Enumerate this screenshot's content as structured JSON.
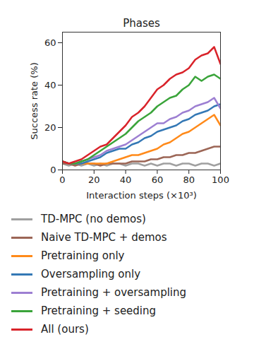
{
  "chart_data": {
    "type": "line",
    "title": "Phases",
    "x_label": "Interaction steps (×10³)",
    "y_label": "Success rate (%)",
    "x": [
      0,
      4,
      8,
      12,
      16,
      20,
      24,
      28,
      32,
      36,
      40,
      44,
      48,
      52,
      56,
      60,
      64,
      68,
      72,
      76,
      80,
      84,
      88,
      92,
      96,
      100
    ],
    "xlim": [
      0,
      100
    ],
    "xticks": [
      0,
      20,
      40,
      60,
      80,
      100
    ],
    "ylim": [
      0,
      65
    ],
    "yticks": [
      0,
      20,
      40,
      60
    ],
    "grid": false,
    "legend": "bottom",
    "series": [
      {
        "name": "TD-MPC (no demos)",
        "color": "#a0a0a0",
        "values": [
          3,
          2,
          3,
          2,
          3,
          2,
          3,
          2,
          3,
          3,
          2,
          3,
          3,
          2,
          3,
          2,
          3,
          3,
          2,
          3,
          3,
          2,
          3,
          3,
          2,
          3
        ]
      },
      {
        "name": "Naive TD-MPC + demos",
        "color": "#9c6656",
        "values": [
          3,
          3,
          2,
          3,
          3,
          3,
          2,
          3,
          3,
          3,
          3,
          4,
          4,
          4,
          5,
          5,
          6,
          6,
          7,
          7,
          8,
          8,
          9,
          10,
          11,
          11
        ]
      },
      {
        "name": "Pretraining only",
        "color": "#ff8a1a",
        "values": [
          4,
          3,
          3,
          3,
          3,
          3,
          3,
          3,
          4,
          5,
          6,
          7,
          7,
          8,
          9,
          10,
          12,
          13,
          15,
          17,
          18,
          20,
          22,
          24,
          26,
          21
        ]
      },
      {
        "name": "Oversampling only",
        "color": "#3478b5",
        "values": [
          4,
          3,
          3,
          3,
          4,
          5,
          6,
          8,
          9,
          10,
          10,
          12,
          13,
          15,
          16,
          18,
          19,
          20,
          21,
          23,
          24,
          26,
          27,
          28,
          30,
          31
        ]
      },
      {
        "name": "Pretraining + oversampling",
        "color": "#9d7fd2",
        "values": [
          4,
          3,
          3,
          4,
          5,
          6,
          7,
          9,
          10,
          11,
          12,
          14,
          16,
          18,
          20,
          22,
          22,
          24,
          25,
          27,
          28,
          30,
          31,
          32,
          34,
          29
        ]
      },
      {
        "name": "Pretraining + seeding",
        "color": "#3aa43a",
        "values": [
          4,
          3,
          3,
          4,
          5,
          7,
          9,
          11,
          13,
          15,
          17,
          20,
          23,
          25,
          27,
          30,
          32,
          34,
          35,
          38,
          40,
          44,
          42,
          44,
          45,
          43
        ]
      },
      {
        "name": "All (ours)",
        "color": "#d9232a",
        "values": [
          4,
          3,
          4,
          5,
          7,
          9,
          11,
          12,
          15,
          18,
          21,
          25,
          27,
          30,
          34,
          38,
          40,
          43,
          45,
          46,
          48,
          52,
          54,
          55,
          58,
          50
        ]
      }
    ]
  }
}
